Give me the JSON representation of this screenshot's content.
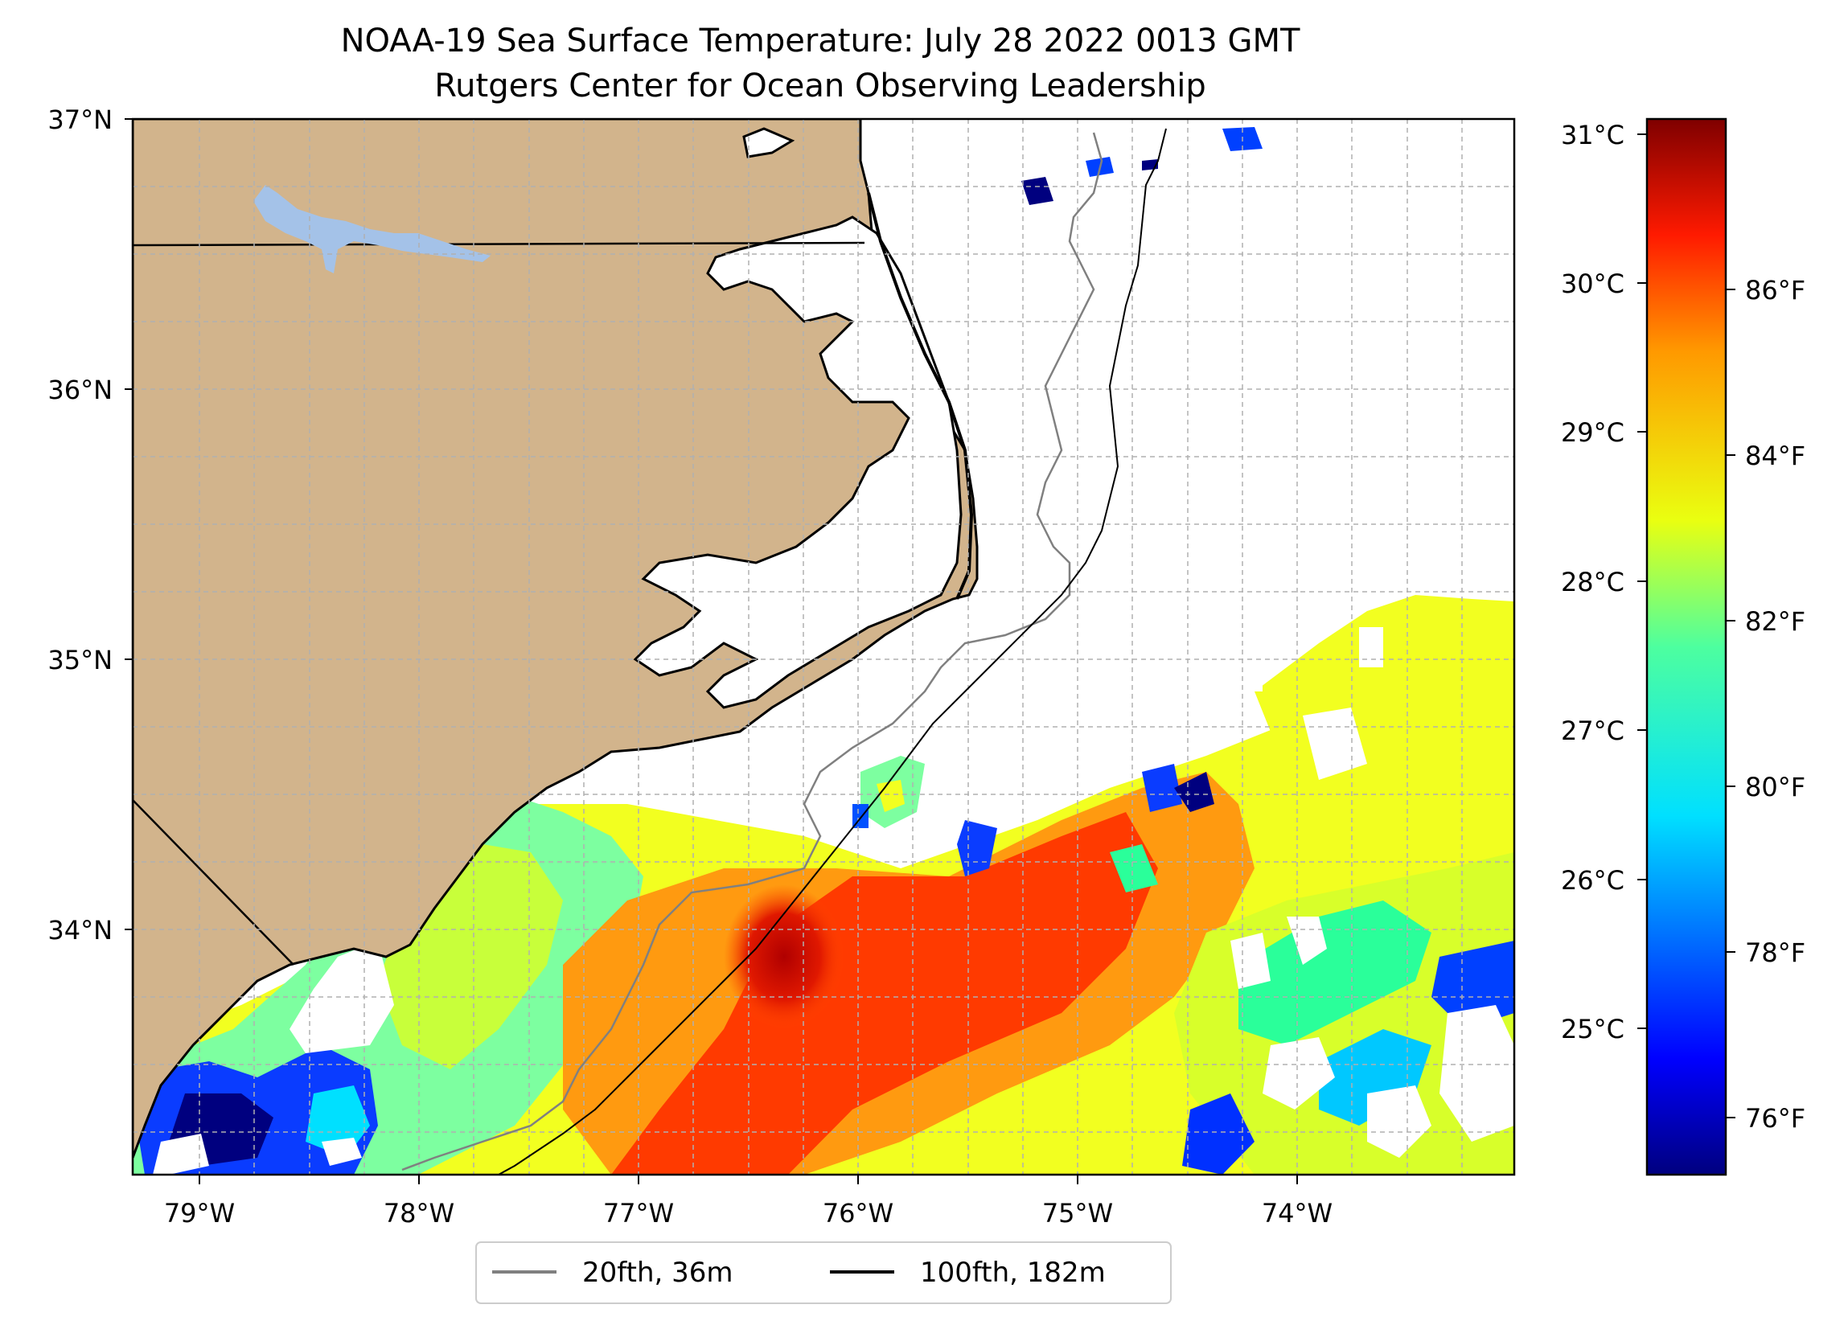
{
  "figure": {
    "title_line1": "NOAA-19 Sea Surface Temperature: July 28 2022 0013 GMT",
    "title_line2": "Rutgers Center for Ocean Observing Leadership"
  },
  "map": {
    "lat_labels": [
      "37°N",
      "36°N",
      "35°N",
      "34°N"
    ],
    "lon_labels": [
      "79°W",
      "78°W",
      "77°W",
      "76°W",
      "75°W",
      "74°W"
    ],
    "land_color": "#d2b48c",
    "lake_color": "#a4c2e8",
    "grid": true,
    "grid_style": "dashed light gray",
    "features": [
      "coastline",
      "state-boundaries",
      "sst-raster",
      "isobath-20fth",
      "isobath-100fth",
      "lakes"
    ]
  },
  "legend": {
    "entries": [
      {
        "label": "20fth, 36m",
        "color": "#808080"
      },
      {
        "label": "100fth, 182m",
        "color": "#000000"
      }
    ],
    "placement": "below-center"
  },
  "colorbar": {
    "colormap": "jet",
    "celsius_labels": [
      "31°C",
      "30°C",
      "29°C",
      "28°C",
      "27°C",
      "26°C",
      "25°C"
    ],
    "fahrenheit_labels": [
      "86°F",
      "84°F",
      "82°F",
      "80°F",
      "78°F",
      "76°F"
    ],
    "range_c": [
      24.0,
      31.1
    ],
    "colors": {
      "top": "#7f0000",
      "red": "#ff1a00",
      "orange": "#ff9900",
      "yellow": "#eaff10",
      "green": "#4dff9f",
      "cyan": "#00e0ff",
      "blue": "#0040ff",
      "bottom": "#00007f"
    }
  },
  "chart_data": {
    "type": "heatmap",
    "title": "NOAA-19 Sea Surface Temperature: July 28 2022 0013 GMT\nRutgers Center for Ocean Observing Leadership",
    "xlabel": "",
    "ylabel": "",
    "xlim": [
      -79.3,
      -73.0
    ],
    "ylim": [
      33.1,
      37.0
    ],
    "colorbar_range_c": [
      24.0,
      31.1
    ],
    "x_ticks": [
      "79°W",
      "78°W",
      "77°W",
      "76°W",
      "75°W",
      "74°W"
    ],
    "y_ticks": [
      "37°N",
      "36°N",
      "35°N",
      "34°N"
    ],
    "series": [
      {
        "name": "20fth, 36m",
        "kind": "isobath-line"
      },
      {
        "name": "100fth, 182m",
        "kind": "isobath-line"
      }
    ],
    "grid": true,
    "legend_placement": "bottom-center"
  }
}
